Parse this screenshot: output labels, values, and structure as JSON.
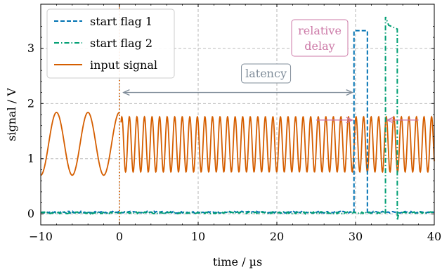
{
  "chart_data": {
    "type": "line",
    "xlabel": "time / µs",
    "ylabel": "signal / V",
    "xlim": [
      -10,
      40
    ],
    "ylim": [
      -0.2,
      3.8
    ],
    "xticks": [
      -10,
      0,
      10,
      20,
      30,
      40
    ],
    "xtick_labels": [
      "−10",
      "0",
      "10",
      "20",
      "30",
      "40"
    ],
    "yticks": [
      0,
      1,
      2,
      3
    ],
    "ytick_labels": [
      "0",
      "1",
      "2",
      "3"
    ],
    "grid": true,
    "grid_style": "dashed",
    "legend_position": "top-left",
    "colors": {
      "start_flag_1": "#0072B2",
      "start_flag_2": "#009E73",
      "input_signal": "#D55E00",
      "latency_annotation": "#7F8C99",
      "delay_annotation": "#CC79A7"
    },
    "series": [
      {
        "name": "start flag 1",
        "line_style": "dashed",
        "x": [
          -10,
          29.8,
          29.8,
          31.5,
          31.5,
          40
        ],
        "y": [
          0.03,
          0.03,
          3.32,
          3.32,
          0.03,
          0.03
        ]
      },
      {
        "name": "start flag 2",
        "line_style": "dash-dot",
        "x": [
          -10,
          33.8,
          33.8,
          34.2,
          35.3,
          35.3,
          35.5,
          40
        ],
        "y": [
          0.02,
          0.02,
          3.57,
          3.42,
          3.35,
          -0.12,
          0.02,
          0.02
        ]
      },
      {
        "name": "input signal",
        "line_style": "solid",
        "segments": [
          {
            "x_range": [
              -10,
              0
            ],
            "offset": 1.27,
            "amplitude": 0.57,
            "period": 4.0,
            "peak_at": -8.0
          },
          {
            "x_range": [
              0.2,
              40
            ],
            "offset": 1.26,
            "amplitude": 0.5,
            "period": 0.96,
            "peak_at": 0.3
          }
        ]
      }
    ],
    "annotations": {
      "trigger_line_x": 0,
      "latency": {
        "label": "latency",
        "from_x": 0.5,
        "to_x": 29.6,
        "y": 2.2
      },
      "relative_delay": {
        "label_line1": "relative",
        "label_line2": "delay",
        "left_arrow_x": [
          25,
          29.6
        ],
        "right_arrow_x": [
          38,
          34
        ],
        "y": 1.7
      }
    }
  }
}
